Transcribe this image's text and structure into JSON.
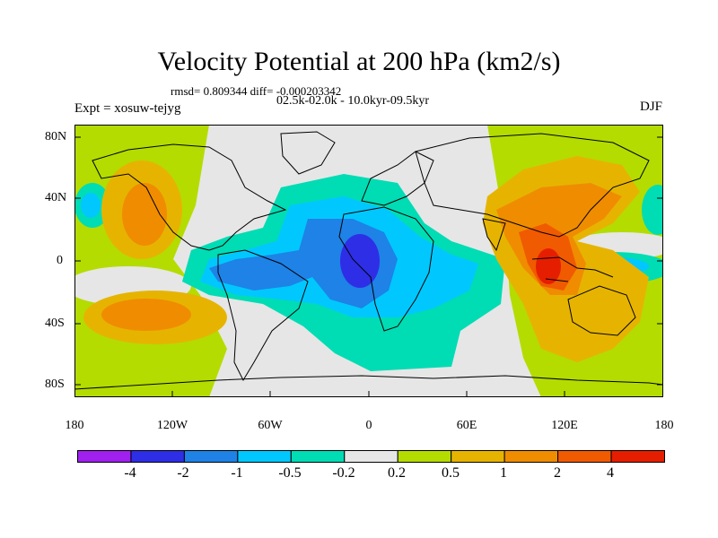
{
  "title": "Velocity Potential at 200 hPa (km2/s)",
  "stats": "rmsd= 0.809344  diff= -0.000203342",
  "period": "02.5k-02.0k - 10.0kyr-09.5kyr",
  "experiment": "Expt = xosuw-tejyg",
  "season": "DJF",
  "lat_labels": [
    "80N",
    "40N",
    "0",
    "40S",
    "80S"
  ],
  "lon_labels": [
    "180",
    "120W",
    "60W",
    "0",
    "60E",
    "120E",
    "180"
  ],
  "colorbar": {
    "colors": [
      "#a020f0",
      "#2e2ee6",
      "#1e82e6",
      "#00c8ff",
      "#00dcb4",
      "#e6e6e6",
      "#b4dc00",
      "#e6b400",
      "#f08c00",
      "#f05a00",
      "#e61e00"
    ],
    "labels": [
      "-4",
      "-2",
      "-1",
      "-0.5",
      "-0.2",
      "0.2",
      "0.5",
      "1",
      "2",
      "4"
    ]
  }
}
